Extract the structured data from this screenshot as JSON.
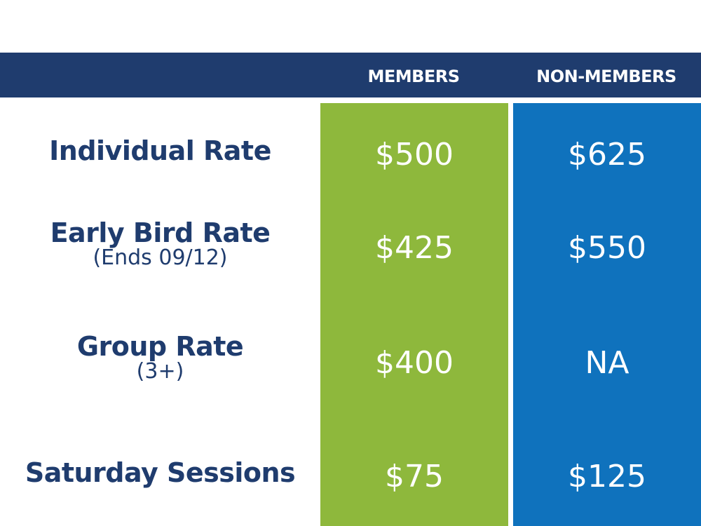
{
  "header": {
    "members_label": "MEMBERS",
    "nonmembers_label": "NON-MEMBERS"
  },
  "rows": [
    {
      "label": "Individual Rate",
      "sublabel": "",
      "members": "$500",
      "nonmembers": "$625"
    },
    {
      "label": "Early Bird Rate",
      "sublabel": "(Ends 09/12)",
      "members": "$425",
      "nonmembers": "$550"
    },
    {
      "label": "Group Rate",
      "sublabel": "(3+)",
      "members": "$400",
      "nonmembers": "NA"
    },
    {
      "label": "Saturday Sessions",
      "sublabel": "",
      "members": "$75",
      "nonmembers": "$125"
    }
  ],
  "colors": {
    "navy": "#1f3c6e",
    "green": "#8eb83c",
    "blue": "#0f72bd"
  }
}
